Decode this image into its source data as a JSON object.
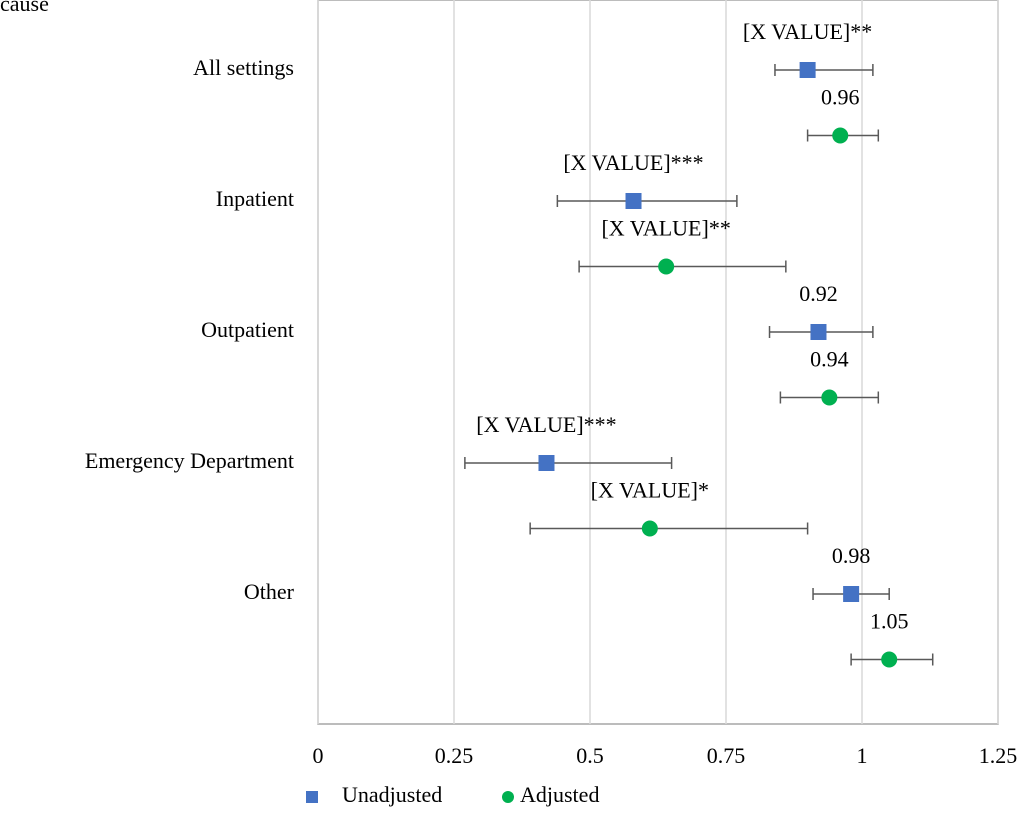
{
  "chart_data": {
    "type": "forest",
    "title": "cause",
    "categories": [
      "All settings",
      "Inpatient",
      "Outpatient",
      "Emergency Department",
      "Other"
    ],
    "series": [
      {
        "name": "Unadjusted",
        "color": "#4472c4",
        "marker": "square",
        "values": [
          0.9,
          0.58,
          0.92,
          0.42,
          0.98
        ],
        "low": [
          0.84,
          0.44,
          0.83,
          0.27,
          0.91
        ],
        "high": [
          1.02,
          0.77,
          1.02,
          0.65,
          1.05
        ],
        "value_labels": [
          "[X VALUE]**",
          "[X VALUE]***",
          "0.92",
          "[X VALUE]***",
          "0.98"
        ]
      },
      {
        "name": "Adjusted",
        "color": "#00b050",
        "marker": "circle",
        "values": [
          0.96,
          0.64,
          0.94,
          0.61,
          1.05
        ],
        "low": [
          0.9,
          0.48,
          0.85,
          0.39,
          0.98
        ],
        "high": [
          1.03,
          0.86,
          1.03,
          0.9,
          1.13
        ],
        "value_labels": [
          "0.96",
          "[X VALUE]**",
          "0.94",
          "[X VALUE]*",
          "1.05"
        ]
      }
    ],
    "xlim": [
      0,
      1.25
    ],
    "xticks": [
      0,
      0.25,
      0.5,
      0.75,
      1,
      1.25
    ],
    "grid": true
  }
}
